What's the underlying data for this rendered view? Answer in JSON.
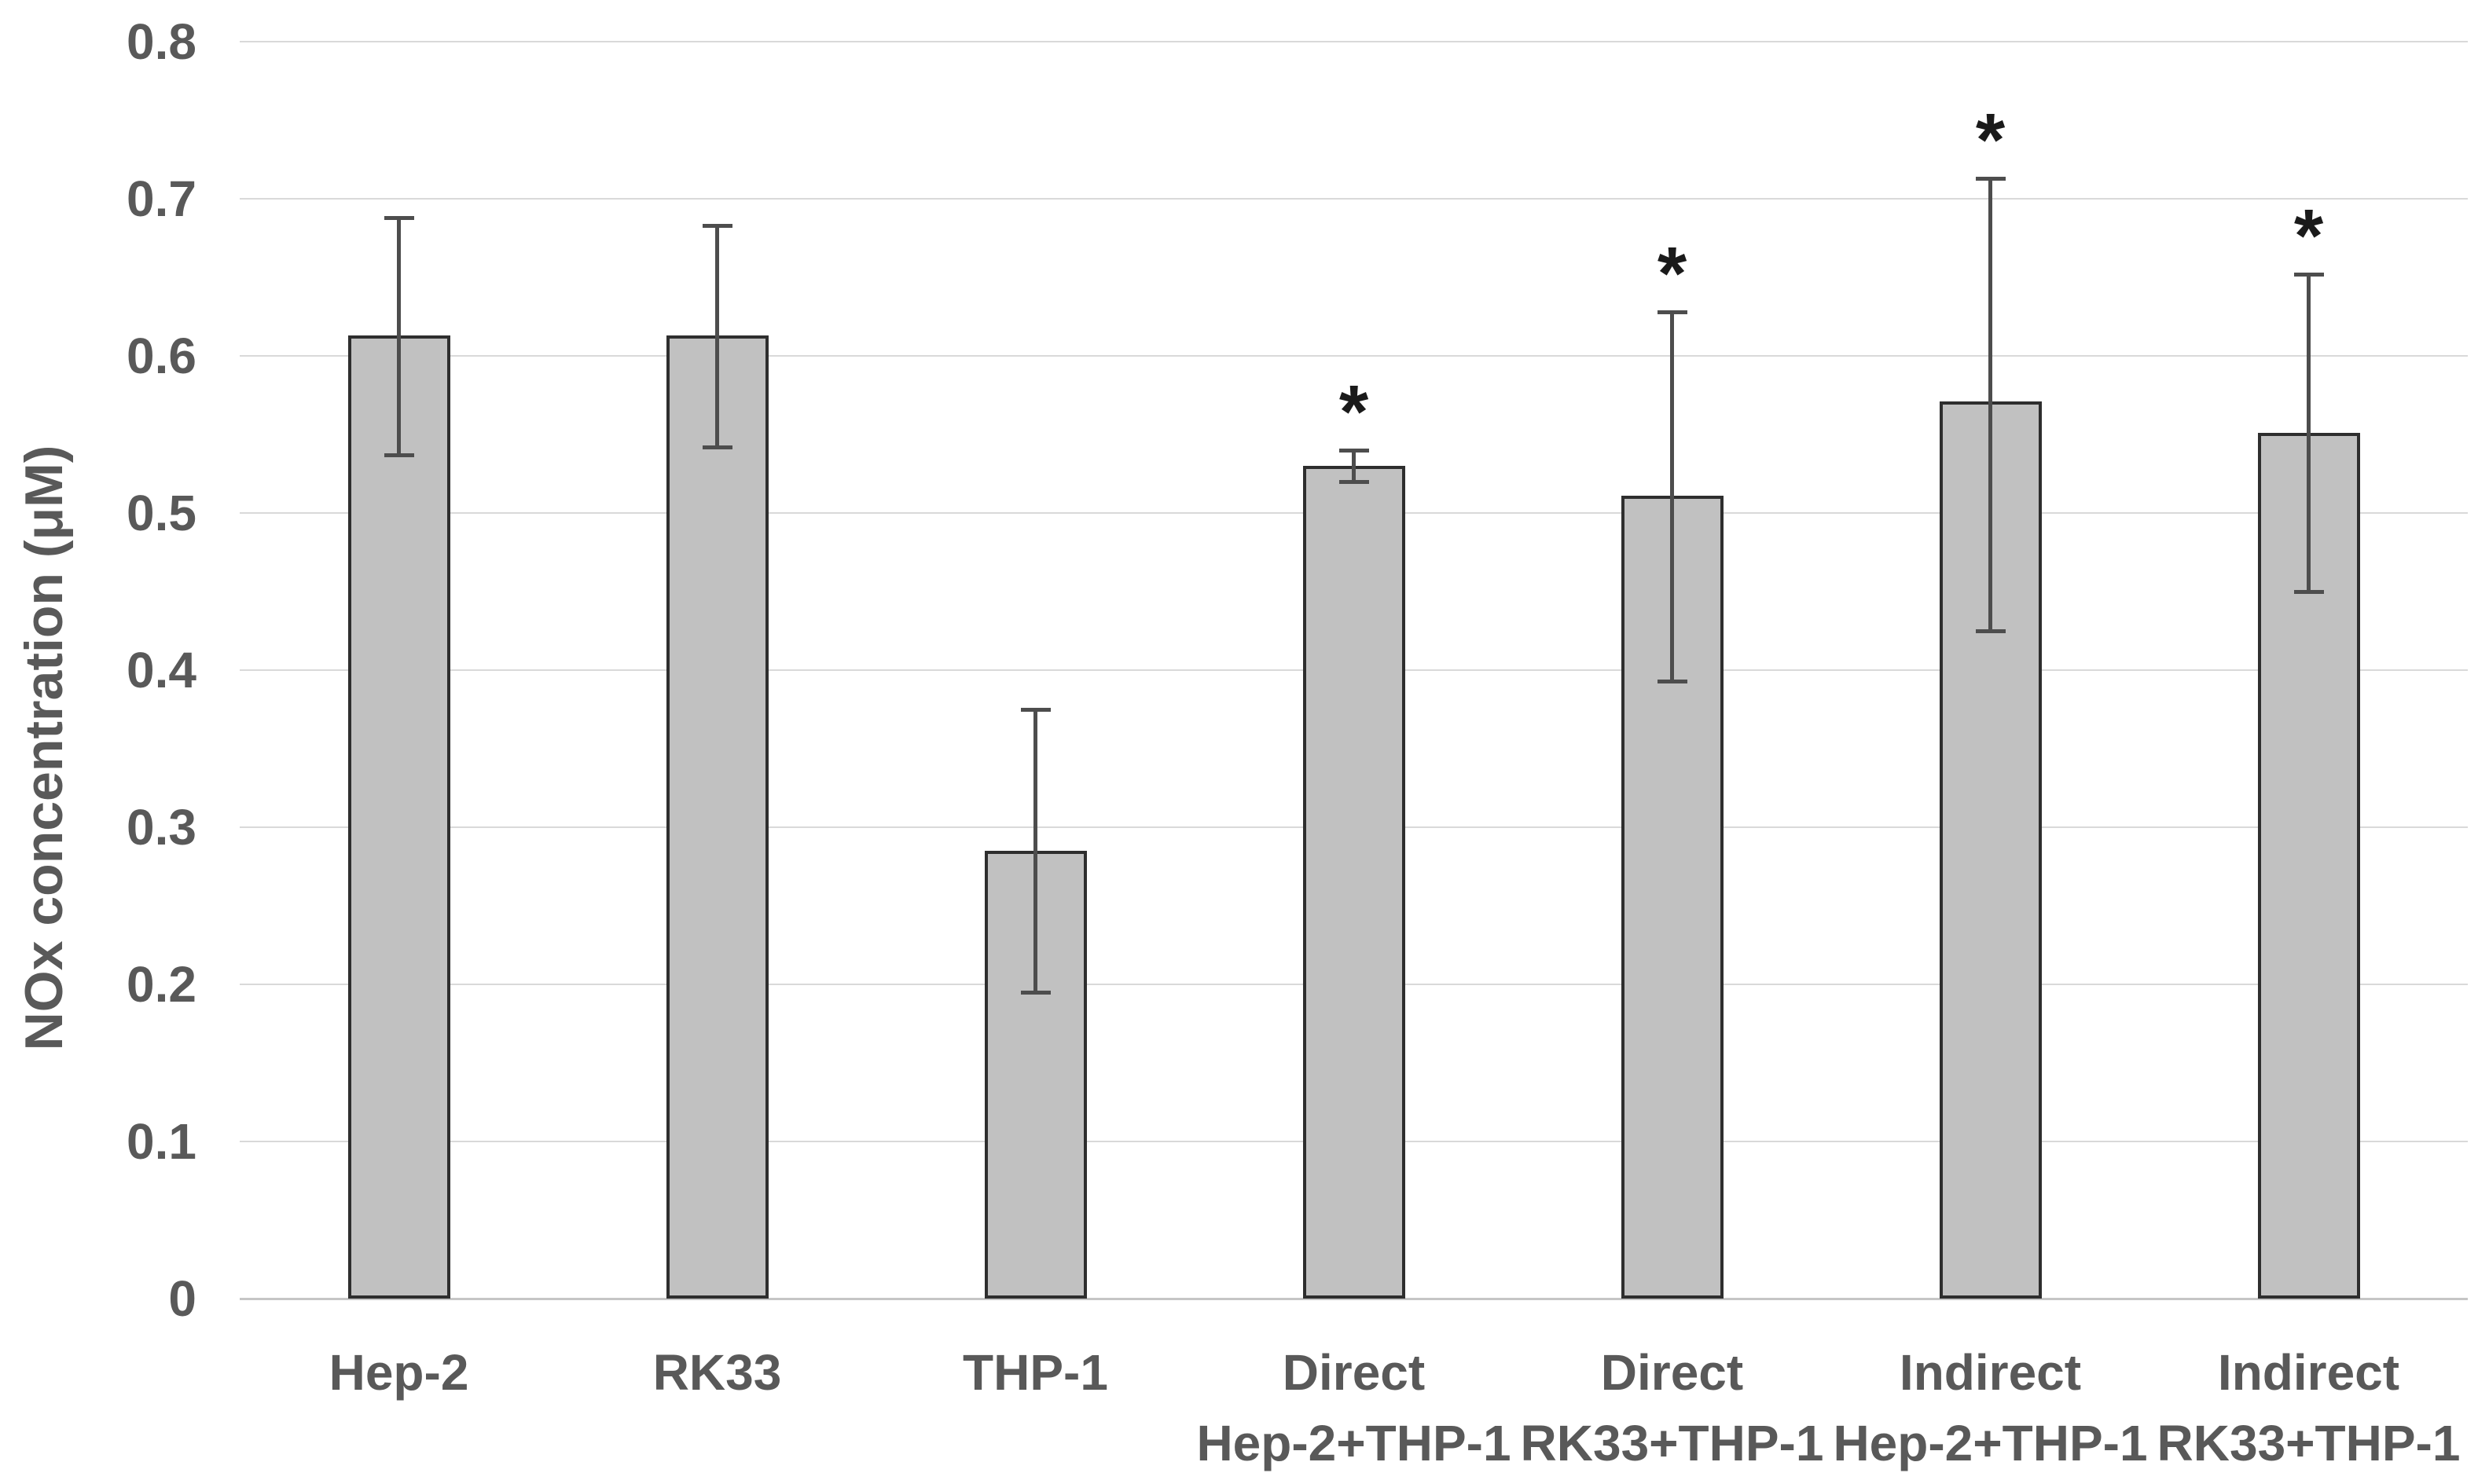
{
  "chart_data": {
    "type": "bar",
    "title": "",
    "xlabel": "",
    "ylabel": "NOx concentration (μM)",
    "ylim": [
      0,
      0.8
    ],
    "ytick_labels": [
      "0",
      "0.1",
      "0.2",
      "0.3",
      "0.4",
      "0.5",
      "0.6",
      "0.7",
      "0.8"
    ],
    "grid": true,
    "legend": "none",
    "error_bars": true,
    "significance_marker": "*",
    "categories": [
      "Hep-2",
      "RK33",
      "THP-1",
      "Direct Hep-2+THP-1",
      "Direct RK33+THP-1",
      "Indirect Hep-2+THP-1",
      "Indirect RK33+THP-1"
    ],
    "category_label_lines": [
      [
        "Hep-2"
      ],
      [
        "RK33"
      ],
      [
        "THP-1"
      ],
      [
        "Direct",
        "Hep-2+THP-1"
      ],
      [
        "Direct",
        "RK33+THP-1"
      ],
      [
        "Indirect",
        "Hep-2+THP-1"
      ],
      [
        "Indirect",
        "RK33+THP-1"
      ]
    ],
    "series": [
      {
        "name": "NOx concentration",
        "values": [
          0.613,
          0.613,
          0.285,
          0.53,
          0.511,
          0.571,
          0.551
        ],
        "err_plus": [
          0.075,
          0.07,
          0.09,
          0.01,
          0.117,
          0.142,
          0.101
        ],
        "err_minus": [
          0.076,
          0.071,
          0.09,
          0.01,
          0.118,
          0.146,
          0.101
        ],
        "significant": [
          false,
          false,
          false,
          true,
          true,
          true,
          true
        ]
      }
    ]
  },
  "colors": {
    "background": "#ffffff",
    "bar_fill": "#c1c1c1",
    "bar_border": "#2e2e2e",
    "error_bar": "#4d4d4d",
    "gridline": "#d9d9d9",
    "axis_line": "#c6c6c6",
    "text": "#595959",
    "asterisk": "#1a1a1a"
  }
}
